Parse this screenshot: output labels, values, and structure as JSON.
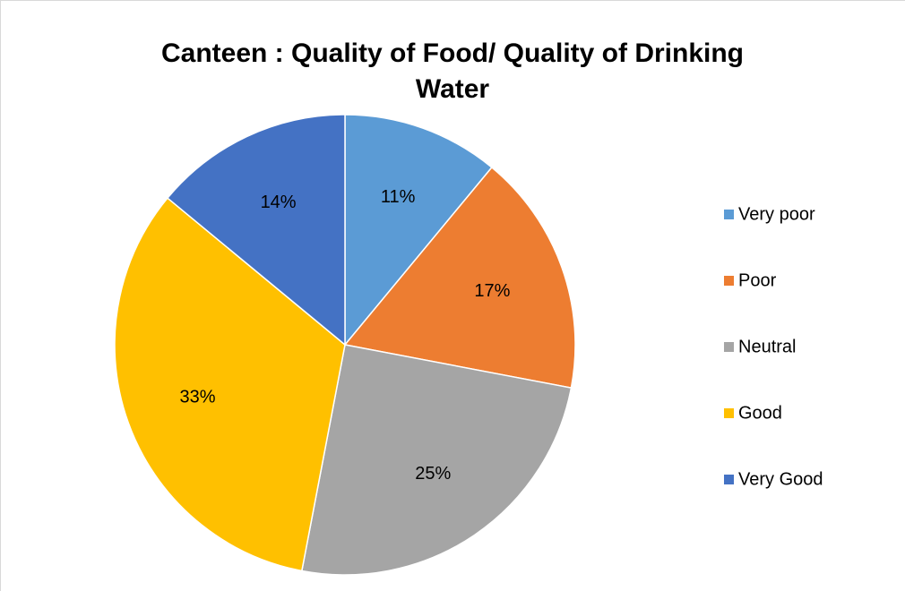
{
  "chart_data": {
    "type": "pie",
    "title": "Canteen : Quality of Food/ Quality of Drinking Water",
    "categories": [
      "Very poor",
      "Poor",
      "Neutral",
      "Good",
      "Very Good"
    ],
    "values": [
      11,
      17,
      25,
      33,
      14
    ],
    "value_labels": [
      "11%",
      "17%",
      "25%",
      "33%",
      "14%"
    ],
    "colors": [
      "#5b9bd5",
      "#ed7d31",
      "#a5a5a5",
      "#ffc000",
      "#4472c4"
    ],
    "legend": "right"
  }
}
